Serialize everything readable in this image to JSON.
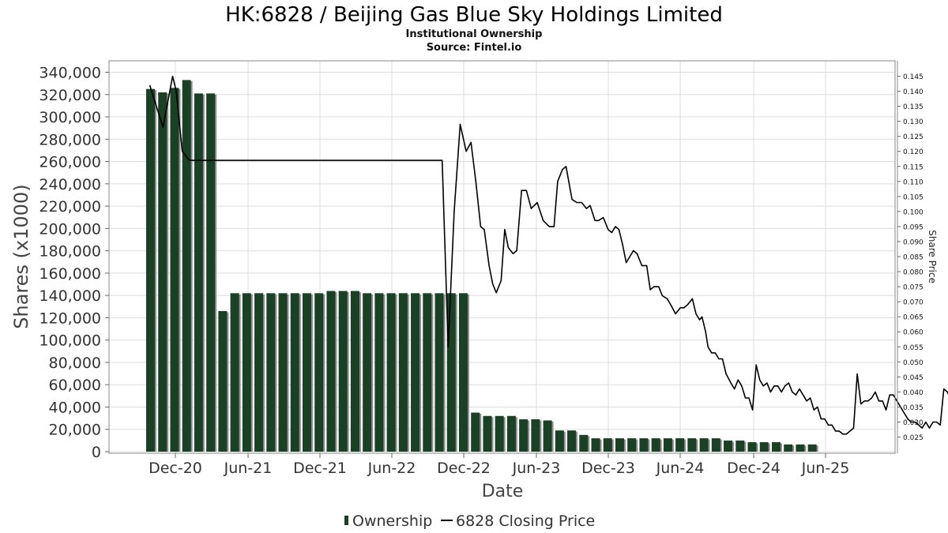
{
  "chart_data": {
    "type": "bar",
    "title": "HK:6828 / Beijing Gas Blue Sky Holdings Limited",
    "subtitle": "Institutional Ownership",
    "source": "Source: Fintel.io",
    "xlabel": "Date",
    "ylabel": "Shares (x1000)",
    "y2label": "Share Price",
    "ylim": [
      0,
      345000
    ],
    "y2lim": [
      0.0211,
      0.148
    ],
    "y_ticks": [
      "0",
      "20,000",
      "40,000",
      "60,000",
      "80,000",
      "100,000",
      "120,000",
      "140,000",
      "160,000",
      "180,000",
      "200,000",
      "220,000",
      "240,000",
      "260,000",
      "280,000",
      "300,000",
      "320,000",
      "340,000"
    ],
    "y2_ticks": [
      "0.025",
      "0.030",
      "0.035",
      "0.040",
      "0.045",
      "0.050",
      "0.055",
      "0.060",
      "0.065",
      "0.070",
      "0.075",
      "0.080",
      "0.085",
      "0.090",
      "0.095",
      "0.100",
      "0.105",
      "0.110",
      "0.115",
      "0.120",
      "0.125",
      "0.130",
      "0.135",
      "0.140",
      "0.145"
    ],
    "x_ticks": [
      "Dec-20",
      "Jun-21",
      "Dec-21",
      "Jun-22",
      "Dec-22",
      "Jun-23",
      "Dec-23",
      "Jun-24",
      "Dec-24",
      "Jun-25"
    ],
    "legend": {
      "position": "bottom-center",
      "ownership": "Ownership",
      "price": "6828 Closing Price"
    },
    "grid": true,
    "colors": {
      "bar": "#1a4026",
      "bar_shadow": "#8f8f8f",
      "line": "#000000",
      "grid": "#dddddd"
    },
    "series": [
      {
        "name": "Ownership",
        "type": "bar",
        "values": [
          325000,
          322000,
          326000,
          333000,
          321000,
          321000,
          126000,
          142000,
          142000,
          142000,
          142000,
          142000,
          142000,
          142000,
          142000,
          144000,
          144000,
          144000,
          142000,
          142000,
          142000,
          142000,
          142000,
          142000,
          142000,
          142000,
          142000,
          35000,
          32000,
          32000,
          32000,
          29000,
          29000,
          28000,
          19000,
          19000,
          15000,
          12000,
          12000,
          12000,
          12000,
          12000,
          12000,
          12000,
          12000,
          12000,
          12000,
          12000,
          10000,
          10000,
          8500,
          8500,
          8500,
          6500,
          6500,
          6500
        ]
      },
      {
        "name": "6828 Closing Price",
        "type": "line",
        "points": [
          [
            0.3,
            0.142
          ],
          [
            1.4,
            0.128
          ],
          [
            2.2,
            0.145
          ],
          [
            2.5,
            0.14
          ],
          [
            3.0,
            0.12
          ],
          [
            3.6,
            0.117
          ],
          [
            4.5,
            0.117
          ],
          [
            12.0,
            0.117
          ],
          [
            22.0,
            0.117
          ],
          [
            24.6,
            0.117
          ],
          [
            25.1,
            0.055
          ],
          [
            25.6,
            0.1
          ],
          [
            26.1,
            0.129
          ],
          [
            26.6,
            0.12
          ],
          [
            27.0,
            0.123
          ],
          [
            27.4,
            0.11
          ],
          [
            27.8,
            0.095
          ],
          [
            28.1,
            0.094
          ],
          [
            28.5,
            0.082
          ],
          [
            28.8,
            0.076
          ],
          [
            29.1,
            0.073
          ],
          [
            29.5,
            0.077
          ],
          [
            29.8,
            0.094
          ],
          [
            30.1,
            0.088
          ],
          [
            30.5,
            0.086
          ],
          [
            30.8,
            0.087
          ],
          [
            31.2,
            0.107
          ],
          [
            31.6,
            0.107
          ],
          [
            32.0,
            0.101
          ],
          [
            32.5,
            0.103
          ],
          [
            33.0,
            0.097
          ],
          [
            33.5,
            0.095
          ],
          [
            33.9,
            0.095
          ],
          [
            34.2,
            0.11
          ],
          [
            34.6,
            0.114
          ],
          [
            34.9,
            0.115
          ],
          [
            35.4,
            0.104
          ],
          [
            35.8,
            0.103
          ],
          [
            36.2,
            0.103
          ],
          [
            36.6,
            0.101
          ],
          [
            36.9,
            0.102
          ],
          [
            37.3,
            0.097
          ],
          [
            37.6,
            0.097
          ],
          [
            38.0,
            0.098
          ],
          [
            38.4,
            0.094
          ],
          [
            38.7,
            0.093
          ],
          [
            39.0,
            0.095
          ],
          [
            39.3,
            0.094
          ],
          [
            39.6,
            0.089
          ],
          [
            39.9,
            0.083
          ],
          [
            40.2,
            0.085
          ],
          [
            40.5,
            0.087
          ],
          [
            40.8,
            0.086
          ],
          [
            41.2,
            0.082
          ],
          [
            41.6,
            0.082
          ],
          [
            41.9,
            0.074
          ],
          [
            42.2,
            0.075
          ],
          [
            42.6,
            0.075
          ],
          [
            42.9,
            0.072
          ],
          [
            43.3,
            0.071
          ],
          [
            43.6,
            0.069
          ],
          [
            44.0,
            0.066
          ],
          [
            44.4,
            0.068
          ],
          [
            44.7,
            0.068
          ],
          [
            45.0,
            0.069
          ],
          [
            45.4,
            0.071
          ],
          [
            45.7,
            0.066
          ],
          [
            46.0,
            0.064
          ],
          [
            46.2,
            0.065
          ],
          [
            46.5,
            0.06
          ],
          [
            46.7,
            0.055
          ],
          [
            47.0,
            0.053
          ],
          [
            47.3,
            0.053
          ],
          [
            47.6,
            0.051
          ],
          [
            47.9,
            0.051
          ],
          [
            48.2,
            0.046
          ],
          [
            48.6,
            0.043
          ],
          [
            48.9,
            0.041
          ],
          [
            49.2,
            0.044
          ],
          [
            49.5,
            0.042
          ],
          [
            49.8,
            0.038
          ],
          [
            50.1,
            0.038
          ],
          [
            50.4,
            0.034
          ],
          [
            50.7,
            0.049
          ],
          [
            51.0,
            0.044
          ],
          [
            51.3,
            0.042
          ],
          [
            51.6,
            0.043
          ],
          [
            51.9,
            0.04
          ],
          [
            52.2,
            0.042
          ],
          [
            52.5,
            0.042
          ],
          [
            52.8,
            0.04
          ],
          [
            53.1,
            0.042
          ],
          [
            53.4,
            0.043
          ],
          [
            53.7,
            0.04
          ],
          [
            54.0,
            0.039
          ],
          [
            54.3,
            0.041
          ],
          [
            54.6,
            0.039
          ],
          [
            54.9,
            0.037
          ],
          [
            55.2,
            0.038
          ],
          [
            55.5,
            0.034
          ],
          [
            55.8,
            0.035
          ],
          [
            56.1,
            0.031
          ],
          [
            56.4,
            0.031
          ],
          [
            56.7,
            0.029
          ],
          [
            57.0,
            0.029
          ],
          [
            57.3,
            0.027
          ],
          [
            57.6,
            0.027
          ],
          [
            57.9,
            0.026
          ],
          [
            58.2,
            0.026
          ],
          [
            58.5,
            0.027
          ],
          [
            58.8,
            0.028
          ],
          [
            59.1,
            0.046
          ],
          [
            59.4,
            0.036
          ],
          [
            59.7,
            0.037
          ],
          [
            60.0,
            0.037
          ],
          [
            60.3,
            0.038
          ],
          [
            60.6,
            0.04
          ],
          [
            60.9,
            0.037
          ],
          [
            61.2,
            0.037
          ],
          [
            61.5,
            0.034
          ],
          [
            61.8,
            0.039
          ],
          [
            62.1,
            0.039
          ],
          [
            62.4,
            0.037
          ],
          [
            62.7,
            0.035
          ],
          [
            63.0,
            0.033
          ],
          [
            63.3,
            0.031
          ],
          [
            63.6,
            0.03
          ],
          [
            63.9,
            0.03
          ],
          [
            64.2,
            0.029
          ],
          [
            64.5,
            0.028
          ],
          [
            64.8,
            0.03
          ],
          [
            65.1,
            0.028
          ],
          [
            65.4,
            0.03
          ],
          [
            65.7,
            0.03
          ],
          [
            66.0,
            0.029
          ],
          [
            66.3,
            0.041
          ],
          [
            66.6,
            0.04
          ],
          [
            66.9,
            0.037
          ],
          [
            67.2,
            0.032
          ],
          [
            67.5,
            0.033
          ],
          [
            67.8,
            0.035
          ],
          [
            68.1,
            0.039
          ],
          [
            68.4,
            0.038
          ],
          [
            68.7,
            0.038
          ],
          [
            69.0,
            0.039
          ],
          [
            69.3,
            0.038
          ],
          [
            69.6,
            0.038
          ],
          [
            69.9,
            0.04
          ],
          [
            70.2,
            0.044
          ],
          [
            70.5,
            0.047
          ],
          [
            70.8,
            0.053
          ],
          [
            71.1,
            0.053
          ],
          [
            71.4,
            0.051
          ],
          [
            71.7,
            0.05
          ],
          [
            72.0,
            0.052
          ],
          [
            72.3,
            0.048
          ],
          [
            72.6,
            0.049
          ],
          [
            72.9,
            0.048
          ],
          [
            73.2,
            0.048
          ],
          [
            73.5,
            0.047
          ],
          [
            73.8,
            0.052
          ]
        ]
      }
    ]
  }
}
